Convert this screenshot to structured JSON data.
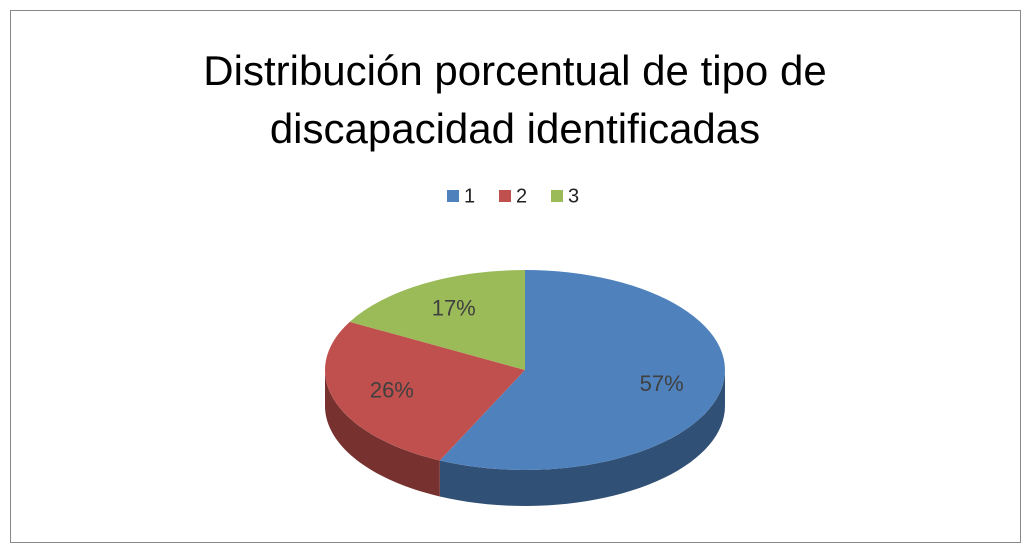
{
  "chart_data": {
    "type": "pie",
    "title": "Distribución porcentual de tipo de discapacidad identificadas",
    "categories": [
      "1",
      "2",
      "3"
    ],
    "values": [
      57,
      26,
      17
    ],
    "value_labels": [
      "57%",
      "26%",
      "17%"
    ],
    "colors": [
      "#4f81bd",
      "#c0504d",
      "#9bbb59"
    ],
    "legend": "top"
  }
}
